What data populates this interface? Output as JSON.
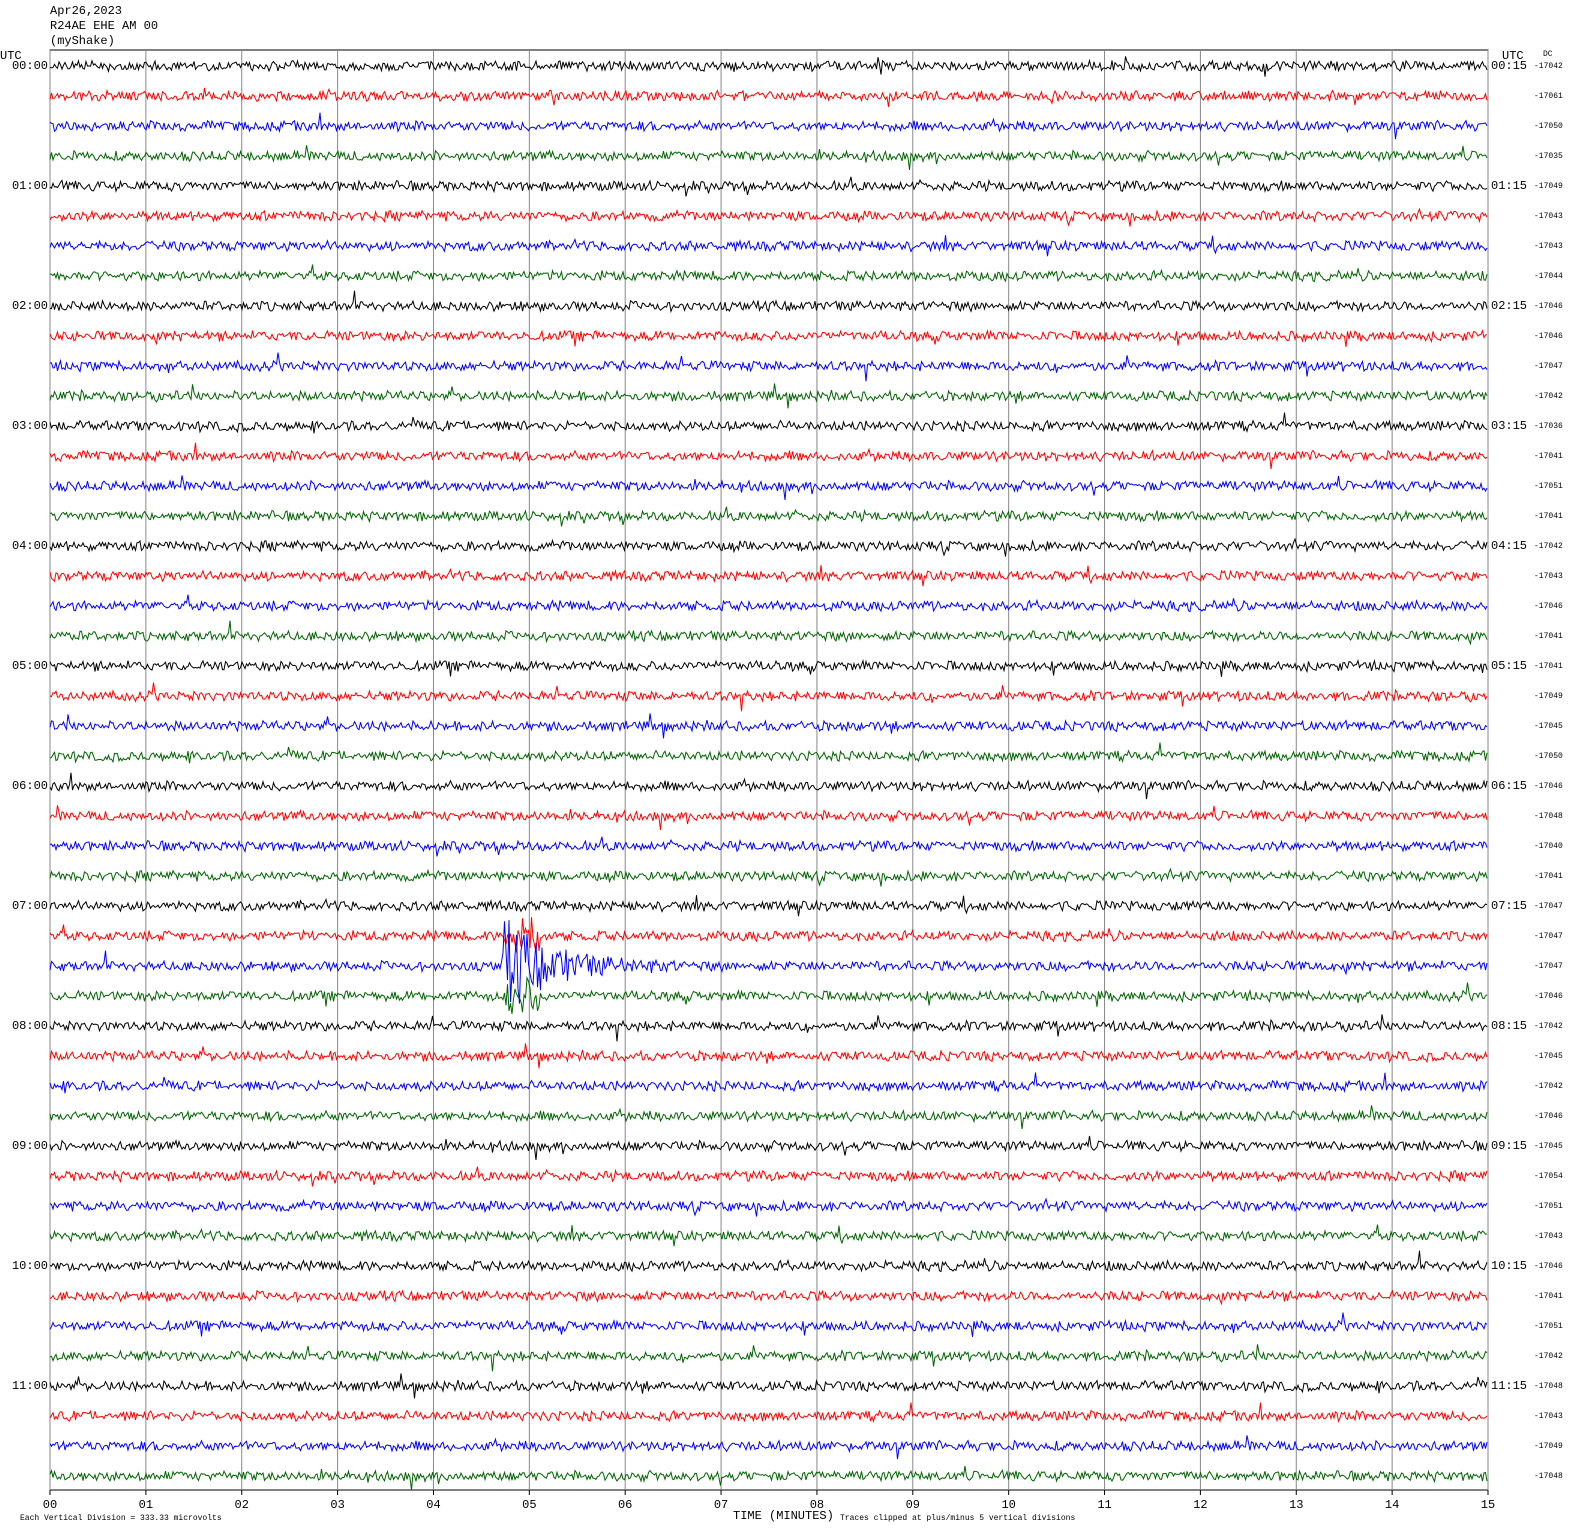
{
  "chart_data": {
    "type": "helicorder",
    "title_lines": [
      "Apr26,2023",
      "R24AE EHE AM 00",
      "(myShake)"
    ],
    "left_axis_label": "UTC",
    "right_axis_label": "UTC",
    "dc_label": "DC",
    "xlabel": "TIME (MINUTES)",
    "scale_note": "Each Vertical Division =  333.33 microvolts",
    "clip_note": "Traces clipped at plus/minus 5 vertical divisions",
    "xlim": [
      0,
      15
    ],
    "xticks": [
      {
        "value": 0,
        "label": "00"
      },
      {
        "value": 1,
        "label": "01"
      },
      {
        "value": 2,
        "label": "02"
      },
      {
        "value": 3,
        "label": "03"
      },
      {
        "value": 4,
        "label": "04"
      },
      {
        "value": 5,
        "label": "05"
      },
      {
        "value": 6,
        "label": "06"
      },
      {
        "value": 7,
        "label": "07"
      },
      {
        "value": 8,
        "label": "08"
      },
      {
        "value": 9,
        "label": "09"
      },
      {
        "value": 10,
        "label": "10"
      },
      {
        "value": 11,
        "label": "11"
      },
      {
        "value": 12,
        "label": "12"
      },
      {
        "value": 13,
        "label": "13"
      },
      {
        "value": 14,
        "label": "14"
      },
      {
        "value": 15,
        "label": "15"
      }
    ],
    "trace_colors": [
      "#000000",
      "#ff0000",
      "#0000ff",
      "#006400"
    ],
    "grid": true,
    "left_time_labels": [
      "00:00",
      "01:00",
      "02:00",
      "03:00",
      "04:00",
      "05:00",
      "06:00",
      "07:00",
      "08:00",
      "09:00",
      "10:00",
      "11:00"
    ],
    "right_time_labels": [
      "00:15",
      "01:15",
      "02:15",
      "03:15",
      "04:15",
      "05:15",
      "06:15",
      "07:15",
      "08:15",
      "09:15",
      "10:15",
      "11:15"
    ],
    "dc_values": [
      -17042,
      -17061,
      -17050,
      -17035,
      -17049,
      -17043,
      -17043,
      -17044,
      -17046,
      -17046,
      -17047,
      -17042,
      -17036,
      -17041,
      -17051,
      -17041,
      -17042,
      -17043,
      -17046,
      -17041,
      -17041,
      -17049,
      -17045,
      -17050,
      -17046,
      -17048,
      -17040,
      -17041,
      -17047,
      -17047,
      -17047,
      -17046,
      -17042,
      -17045,
      -17042,
      -17046,
      -17045,
      -17054,
      -17051,
      -17043,
      -17046,
      -17041,
      -17051,
      -17042,
      -17048,
      -17043,
      -17049,
      -17048
    ]
  }
}
